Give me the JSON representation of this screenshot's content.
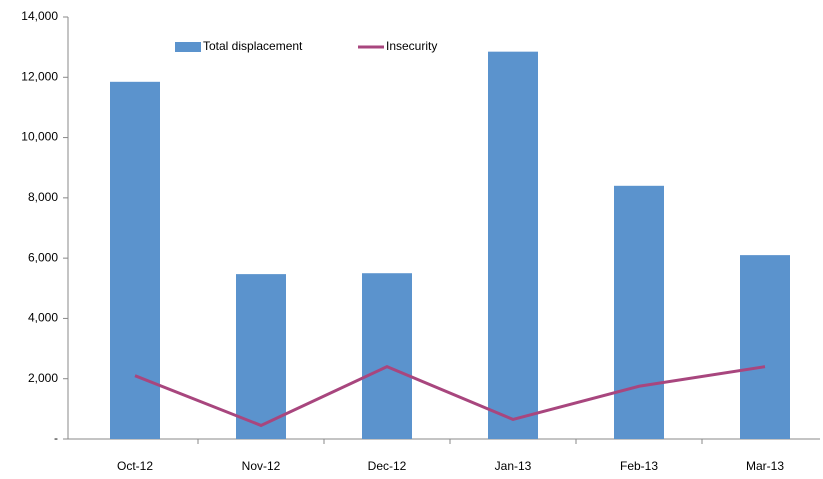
{
  "chart_data": {
    "type": "bar",
    "categories": [
      "Oct-12",
      "Nov-12",
      "Dec-12",
      "Jan-13",
      "Feb-13",
      "Mar-13"
    ],
    "series": [
      {
        "name": "Total displacement",
        "type": "bar",
        "color": "#5b93cd",
        "values": [
          11850,
          5470,
          5500,
          12850,
          8400,
          6100
        ]
      },
      {
        "name": "Insecurity",
        "type": "line",
        "color": "#a8467e",
        "values": [
          2100,
          450,
          2400,
          650,
          1750,
          2400
        ]
      }
    ],
    "ylim": [
      0,
      14000
    ],
    "yticks": [
      {
        "value": 0,
        "label": "-"
      },
      {
        "value": 2000,
        "label": "2,000"
      },
      {
        "value": 4000,
        "label": "4,000"
      },
      {
        "value": 6000,
        "label": "6,000"
      },
      {
        "value": 8000,
        "label": "8,000"
      },
      {
        "value": 10000,
        "label": "10,000"
      },
      {
        "value": 12000,
        "label": "12,000"
      },
      {
        "value": 14000,
        "label": "14,000"
      }
    ],
    "grid": false
  }
}
